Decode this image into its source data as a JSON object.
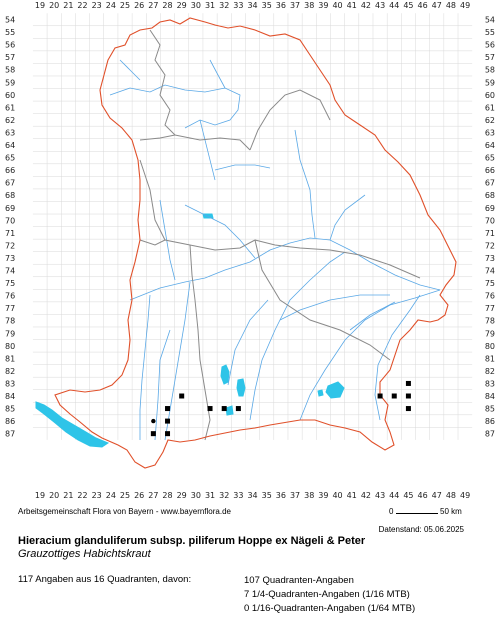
{
  "map": {
    "x_ticks": [
      "19",
      "20",
      "21",
      "22",
      "23",
      "24",
      "25",
      "26",
      "27",
      "28",
      "29",
      "30",
      "31",
      "32",
      "33",
      "34",
      "35",
      "36",
      "37",
      "38",
      "39",
      "40",
      "41",
      "42",
      "43",
      "44",
      "45",
      "46",
      "47",
      "48",
      "49"
    ],
    "y_ticks": [
      "54",
      "55",
      "56",
      "57",
      "58",
      "59",
      "60",
      "61",
      "62",
      "63",
      "64",
      "65",
      "66",
      "67",
      "68",
      "69",
      "70",
      "71",
      "72",
      "73",
      "74",
      "75",
      "76",
      "77",
      "78",
      "79",
      "80",
      "81",
      "82",
      "83",
      "84",
      "85",
      "86",
      "87"
    ],
    "colors": {
      "state_border": "#e0502a",
      "district_border": "#8a8a8a",
      "rivers": "#5aa8e6",
      "lakes": "#2ec4e8",
      "grid": "#d9d9d9",
      "occurrence": "#000000"
    },
    "occurrences": [
      {
        "x": 29,
        "y": 84,
        "marker": "square"
      },
      {
        "x": 28,
        "y": 85,
        "marker": "square"
      },
      {
        "x": 28,
        "y": 86,
        "marker": "square"
      },
      {
        "x": 27,
        "y": 87,
        "marker": "square"
      },
      {
        "x": 28,
        "y": 87,
        "marker": "square"
      },
      {
        "x": 31,
        "y": 85,
        "marker": "square"
      },
      {
        "x": 32,
        "y": 85,
        "marker": "square"
      },
      {
        "x": 33,
        "y": 85,
        "marker": "square"
      },
      {
        "x": 43,
        "y": 84,
        "marker": "square"
      },
      {
        "x": 44,
        "y": 84,
        "marker": "square"
      },
      {
        "x": 45,
        "y": 84,
        "marker": "square"
      },
      {
        "x": 45,
        "y": 83,
        "marker": "square"
      },
      {
        "x": 45,
        "y": 85,
        "marker": "square"
      },
      {
        "x": 27,
        "y": 86,
        "marker": "dot"
      }
    ]
  },
  "footer": {
    "credit": "Arbeitsgemeinschaft Flora von Bayern - www.bayernflora.de",
    "date": "Datenstand: 05.06.2025",
    "scale_start": "0",
    "scale_end": "50 km",
    "title": "Hieracium glanduliferum subsp. piliferum Hoppe ex Nägeli & Peter",
    "subtitle": "Grauzottiges Habichtskraut",
    "summary": "117 Angaben aus 16 Quadranten, davon:",
    "stats": [
      "107 Quadranten-Angaben",
      "7 1/4-Quadranten-Angaben (1/16 MTB)",
      "0 1/16-Quadranten-Angaben (1/64 MTB)"
    ]
  }
}
